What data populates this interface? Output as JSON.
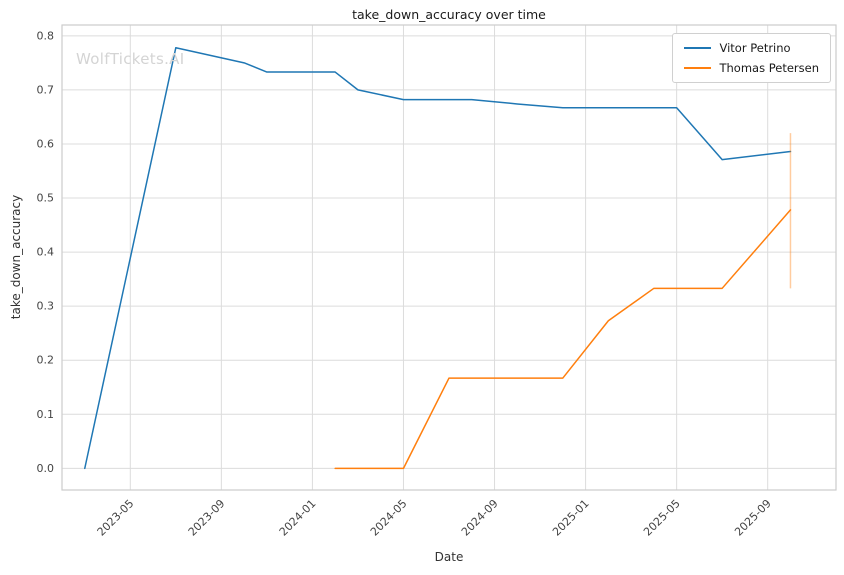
{
  "figure": {
    "title": "take_down_accuracy over time",
    "xlabel": "Date",
    "ylabel": "take_down_accuracy",
    "watermark": "WolfTickets.AI"
  },
  "colors": {
    "grid": "#dcdcdc",
    "spine": "#cccccc",
    "background": "#ffffff"
  },
  "chart_data": {
    "type": "line",
    "title": "take_down_accuracy over time",
    "xlabel": "Date",
    "ylabel": "take_down_accuracy",
    "grid": true,
    "legend_position": "upper right",
    "xlim": [
      "2023-02",
      "2025-12"
    ],
    "ylim": [
      -0.04,
      0.82
    ],
    "x_ticks": [
      "2023-05",
      "2023-09",
      "2024-01",
      "2024-05",
      "2024-09",
      "2025-01",
      "2025-05",
      "2025-09"
    ],
    "y_ticks": [
      0.0,
      0.1,
      0.2,
      0.3,
      0.4,
      0.5,
      0.6,
      0.7,
      0.8
    ],
    "series": [
      {
        "name": "Vitor Petrino",
        "color": "#1f77b4",
        "points": [
          {
            "x": "2023-03",
            "y": 0.0
          },
          {
            "x": "2023-07",
            "y": 0.778
          },
          {
            "x": "2023-10",
            "y": 0.75
          },
          {
            "x": "2023-11",
            "y": 0.733
          },
          {
            "x": "2024-02",
            "y": 0.733
          },
          {
            "x": "2024-03",
            "y": 0.7
          },
          {
            "x": "2024-05",
            "y": 0.682
          },
          {
            "x": "2024-08",
            "y": 0.682
          },
          {
            "x": "2024-10",
            "y": 0.674
          },
          {
            "x": "2024-12",
            "y": 0.667
          },
          {
            "x": "2025-03",
            "y": 0.667
          },
          {
            "x": "2025-05",
            "y": 0.667
          },
          {
            "x": "2025-07",
            "y": 0.571
          },
          {
            "x": "2025-10",
            "y": 0.586
          }
        ],
        "error_bars": []
      },
      {
        "name": "Thomas Petersen",
        "color": "#ff7f0e",
        "points": [
          {
            "x": "2024-02",
            "y": 0.0
          },
          {
            "x": "2024-05",
            "y": 0.0
          },
          {
            "x": "2024-07",
            "y": 0.167
          },
          {
            "x": "2024-09",
            "y": 0.167
          },
          {
            "x": "2024-12",
            "y": 0.167
          },
          {
            "x": "2025-02",
            "y": 0.273
          },
          {
            "x": "2025-04",
            "y": 0.333
          },
          {
            "x": "2025-07",
            "y": 0.333
          },
          {
            "x": "2025-10",
            "y": 0.478
          }
        ],
        "error_bars": [
          {
            "x": "2025-10",
            "y_low": 0.333,
            "y_high": 0.62
          }
        ]
      }
    ]
  }
}
